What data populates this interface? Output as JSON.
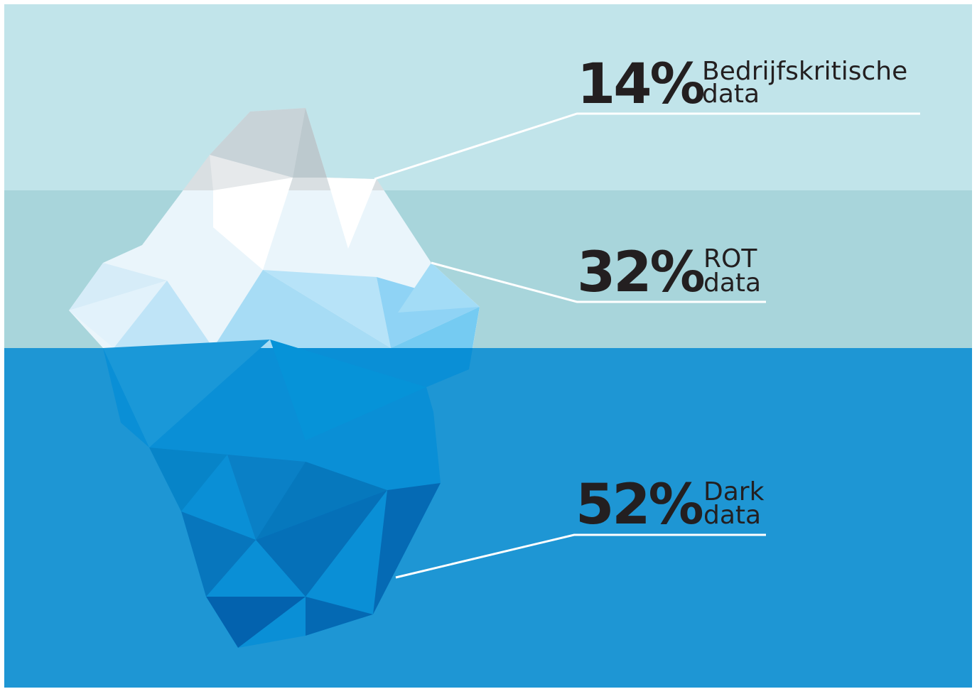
{
  "items": [
    {
      "percent": "14%",
      "label_lines": [
        "Bedrijfskritische",
        "data"
      ]
    },
    {
      "percent": "32%",
      "label_lines": [
        "ROT",
        "data"
      ]
    },
    {
      "percent": "52%",
      "label_lines": [
        "Dark",
        "data"
      ]
    }
  ]
}
